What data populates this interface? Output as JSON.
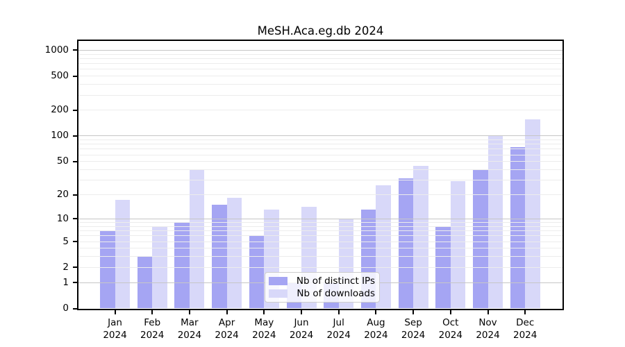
{
  "figure": {
    "background": "#ffffff",
    "text_color": "#000000",
    "frame_color": "#000000"
  },
  "chart_data": {
    "type": "bar",
    "title": "MeSH.Aca.eg.db 2024",
    "categories": [
      "Jan",
      "Feb",
      "Mar",
      "Apr",
      "May",
      "Jun",
      "Jul",
      "Aug",
      "Sep",
      "Oct",
      "Nov",
      "Dec"
    ],
    "year_label": "2024",
    "series": [
      {
        "name": "Nb of distinct IPs",
        "color": "#a5a5f3",
        "values": [
          7,
          3,
          9,
          15,
          6,
          1,
          1,
          13,
          31,
          8,
          40,
          73
        ]
      },
      {
        "name": "Nb of downloads",
        "color": "#d8d8f9",
        "values": [
          17,
          8,
          40,
          18,
          13,
          14,
          10,
          26,
          44,
          29,
          100,
          155
        ]
      }
    ],
    "y_axis": {
      "scale": "log10(value+1)",
      "ticks": [
        0,
        1,
        2,
        5,
        10,
        20,
        50,
        100,
        200,
        500,
        1000
      ],
      "top_value": 1000
    },
    "grid": {
      "major_lines": [
        1,
        10,
        100,
        1000
      ],
      "minor_lines": [
        2,
        3,
        4,
        5,
        6,
        7,
        8,
        9,
        20,
        30,
        40,
        50,
        60,
        70,
        80,
        90,
        200,
        300,
        400,
        500,
        600,
        700,
        800,
        900
      ],
      "major_color": "#c6c6c6",
      "minor_color": "#ececec"
    },
    "legend": {
      "position": "lower center"
    }
  }
}
